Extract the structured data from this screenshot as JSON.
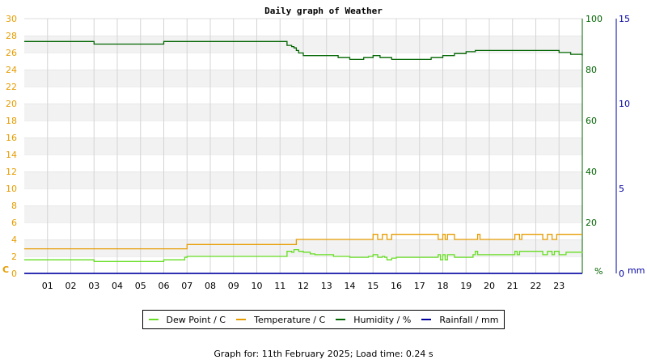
{
  "chart_data": {
    "type": "line",
    "title": "Daily graph of Weather",
    "x_ticks": [
      "01",
      "02",
      "03",
      "04",
      "05",
      "06",
      "07",
      "08",
      "09",
      "10",
      "11",
      "12",
      "13",
      "14",
      "15",
      "16",
      "17",
      "18",
      "19",
      "20",
      "21",
      "22",
      "23"
    ],
    "x_range": [
      0,
      24
    ],
    "axes": {
      "left": {
        "unit_label": "C",
        "range": [
          0,
          30
        ],
        "ticks": [
          0,
          2,
          4,
          6,
          8,
          10,
          12,
          14,
          16,
          18,
          20,
          22,
          24,
          26,
          28,
          30
        ],
        "color": "#e69c00"
      },
      "right1": {
        "unit_label": "%",
        "range": [
          0,
          100
        ],
        "ticks": [
          0,
          20,
          40,
          60,
          80,
          100
        ],
        "color": "#006400"
      },
      "right2": {
        "unit_label": "mm",
        "range": [
          0,
          15
        ],
        "ticks": [
          0,
          5,
          10,
          15
        ],
        "color": "#0000a0"
      }
    },
    "grid": true,
    "legend_placement": "bottom",
    "series": [
      {
        "name": "Dew Point / C",
        "axis": "left",
        "color": "#66dd22",
        "x": [
          0,
          3,
          6,
          6.9,
          7,
          11.2,
          11.3,
          11.5,
          11.6,
          11.8,
          12,
          12.3,
          12.5,
          13,
          13.3,
          14,
          14.3,
          14.8,
          15,
          15.2,
          15.4,
          15.5,
          15.6,
          15.8,
          16,
          17.7,
          17.8,
          17.9,
          18,
          18.1,
          18.2,
          18.5,
          19,
          19.3,
          19.4,
          19.5,
          19.7,
          20,
          21,
          21.1,
          21.2,
          21.3,
          21.5,
          21.7,
          22,
          22.3,
          22.5,
          22.7,
          22.8,
          23,
          23.3,
          24
        ],
        "y": [
          1.6,
          1.4,
          1.6,
          1.9,
          2.0,
          2.0,
          2.6,
          2.5,
          2.8,
          2.6,
          2.5,
          2.3,
          2.2,
          2.2,
          2.0,
          1.9,
          1.9,
          2.0,
          2.2,
          1.9,
          2.0,
          1.9,
          1.6,
          1.8,
          1.9,
          1.9,
          2.2,
          1.6,
          2.2,
          1.6,
          2.2,
          1.9,
          1.9,
          2.2,
          2.6,
          2.2,
          2.2,
          2.2,
          2.2,
          2.6,
          2.2,
          2.6,
          2.6,
          2.6,
          2.6,
          2.2,
          2.6,
          2.2,
          2.6,
          2.2,
          2.5,
          2.4
        ]
      },
      {
        "name": "Temperature / C",
        "axis": "left",
        "color": "#e69c00",
        "x": [
          0,
          6.9,
          7,
          11.2,
          11.7,
          15,
          15.2,
          15.4,
          15.6,
          15.8,
          17.7,
          17.8,
          18,
          18.1,
          18.2,
          18.5,
          19.4,
          19.5,
          19.6,
          20,
          21,
          21.1,
          21.3,
          21.4,
          21.5,
          22,
          22.3,
          22.5,
          22.7,
          22.9,
          23,
          23.3,
          24
        ],
        "y": [
          2.9,
          2.9,
          3.4,
          3.4,
          4.0,
          4.6,
          4.0,
          4.6,
          4.0,
          4.6,
          4.6,
          4.0,
          4.6,
          4.0,
          4.6,
          4.0,
          4.0,
          4.6,
          4.0,
          4.0,
          4.0,
          4.6,
          4.0,
          4.6,
          4.6,
          4.6,
          4.0,
          4.6,
          4.0,
          4.6,
          4.6,
          4.6,
          4.6
        ]
      },
      {
        "name": "Humidity / %",
        "axis": "right1",
        "color": "#006400",
        "x": [
          0,
          3,
          6,
          11.2,
          11.3,
          11.5,
          11.6,
          11.7,
          11.8,
          12,
          13,
          13.5,
          14,
          14.3,
          14.6,
          15,
          15.3,
          15.8,
          16,
          17,
          17.5,
          18,
          18.5,
          19,
          19.4,
          20,
          21,
          22,
          22.2,
          23,
          23.5,
          24
        ],
        "y": [
          91,
          90,
          91,
          91,
          89.5,
          89,
          88.5,
          87.5,
          86.5,
          85.5,
          85.5,
          84.7,
          84,
          84,
          84.7,
          85.5,
          84.7,
          84,
          84,
          84,
          84.7,
          85.5,
          86.3,
          87,
          87.5,
          87.5,
          87.5,
          87.5,
          87.5,
          86.7,
          86,
          85.5
        ]
      },
      {
        "name": "Rainfall / mm",
        "axis": "right2",
        "color": "#0000a0",
        "x": [
          0,
          24
        ],
        "y": [
          0,
          0
        ]
      }
    ]
  },
  "legend": {
    "items": [
      {
        "label": "Dew Point / C",
        "color": "#66dd22"
      },
      {
        "label": "Temperature / C",
        "color": "#e69c00"
      },
      {
        "label": "Humidity / %",
        "color": "#006400"
      },
      {
        "label": "Rainfall / mm",
        "color": "#0000a0"
      }
    ]
  },
  "footer": {
    "text": "Graph for: 11th February 2025; Load time: 0.24 s"
  }
}
